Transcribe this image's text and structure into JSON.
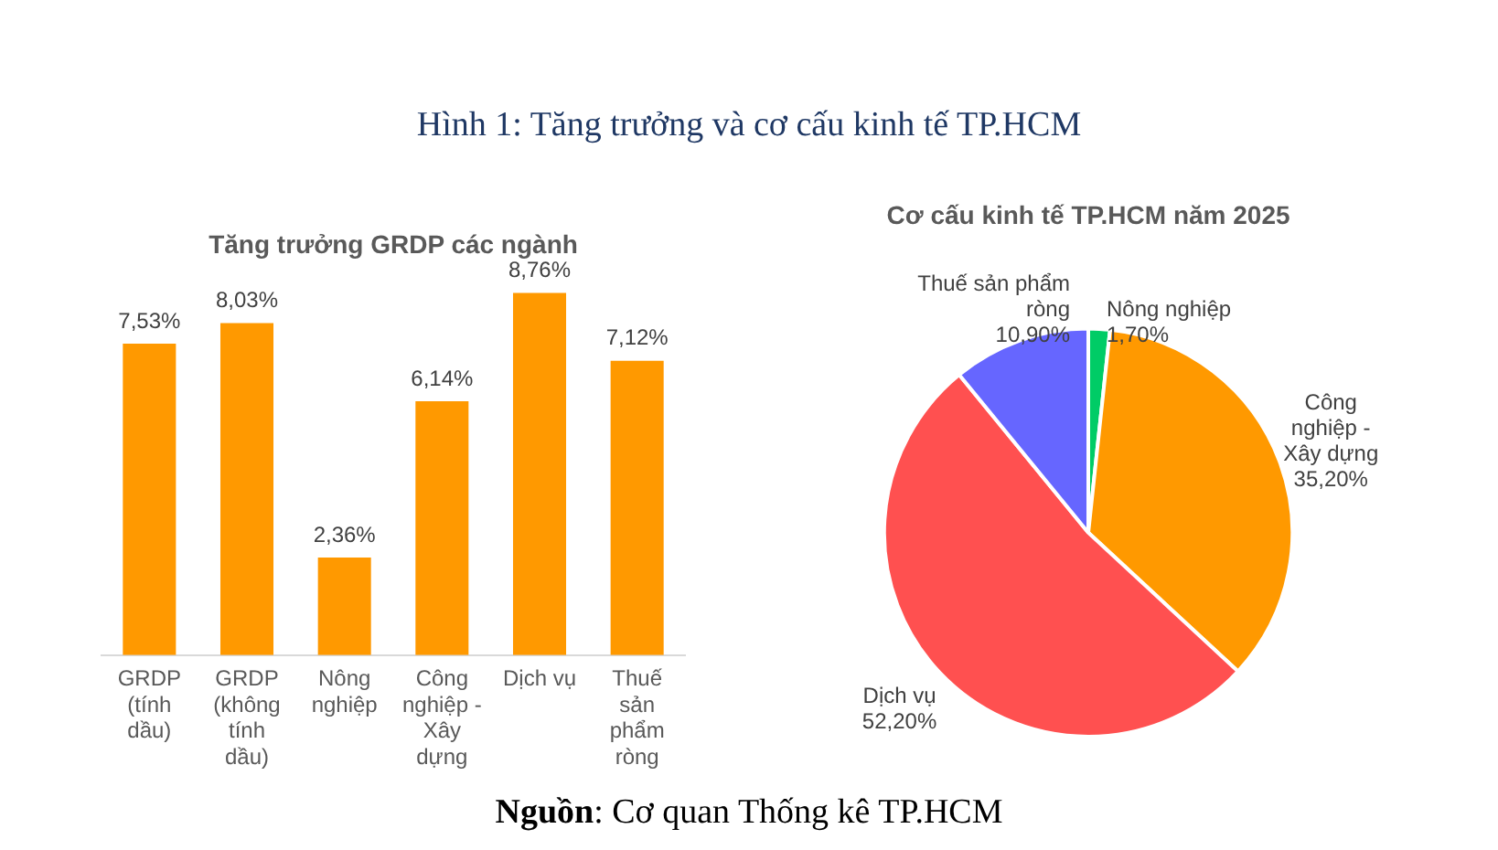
{
  "chart_data": [
    {
      "type": "bar",
      "title": "Tăng trưởng GRDP các ngành",
      "categories": [
        "GRDP (tính dầu)",
        "GRDP (không tính dầu)",
        "Nông nghiệp",
        "Công nghiệp - Xây dựng",
        "Dịch vụ",
        "Thuế sản phẩm ròng"
      ],
      "values": [
        7.53,
        8.03,
        2.36,
        6.14,
        8.76,
        7.12
      ],
      "value_labels": [
        "7,53%",
        "8,03%",
        "2,36%",
        "6,14%",
        "8,76%",
        "7,12%"
      ],
      "color": "#ff9900",
      "grid": false,
      "legend": false,
      "tick_labels": "x",
      "annotations": [
        "Hình 1: Tăng trưởng và cơ cấu kinh tế TP.HCM",
        "Nguồn: Cơ quan Thống kê TP.HCM"
      ]
    },
    {
      "type": "pie",
      "title": "Cơ cấu kinh tế TP.HCM năm 2025",
      "categories": [
        "Nông nghiệp",
        "Công nghiệp - Xây dựng",
        "Dịch vụ",
        "Thuế sản phẩm ròng"
      ],
      "values": [
        1.7,
        35.2,
        52.2,
        10.9
      ],
      "value_labels": [
        "1,70%",
        "35,20%",
        "52,20%",
        "10,90%"
      ],
      "colors": [
        "#00cc66",
        "#ff9900",
        "#ff5050",
        "#6666ff"
      ],
      "legend": false
    }
  ]
}
